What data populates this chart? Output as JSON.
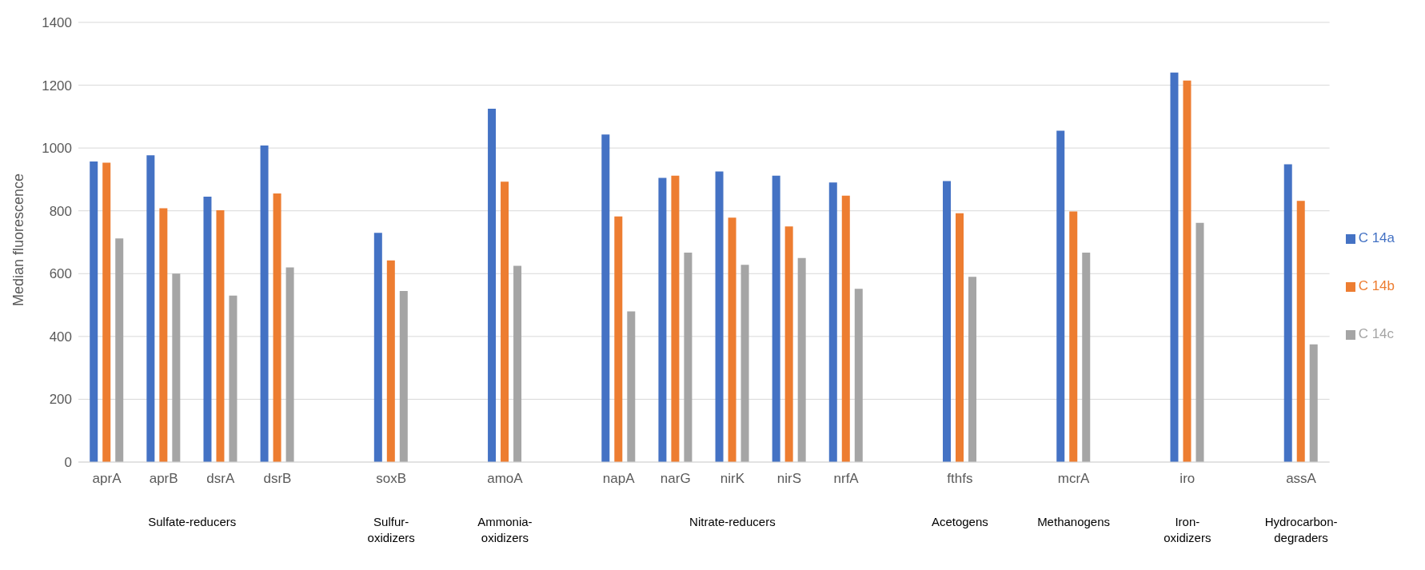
{
  "chart_data": {
    "type": "bar",
    "ylabel": "Median fluorescence",
    "categories": [
      "aprA",
      "aprB",
      "dsrA",
      "dsrB",
      null,
      "soxB",
      null,
      "amoA",
      null,
      "napA",
      "narG",
      "nirK",
      "nirS",
      "nrfA",
      null,
      "fthfs",
      null,
      "mcrA",
      null,
      "iro",
      null,
      "assA"
    ],
    "series": [
      {
        "name": "C 14a",
        "color": "#4472c4",
        "values": [
          957,
          977,
          845,
          1008,
          null,
          730,
          null,
          1125,
          null,
          1043,
          905,
          925,
          912,
          890,
          null,
          895,
          null,
          1055,
          null,
          1240,
          null,
          948
        ]
      },
      {
        "name": "C 14b",
        "color": "#ed7d31",
        "values": [
          953,
          808,
          802,
          855,
          null,
          642,
          null,
          893,
          null,
          782,
          912,
          778,
          750,
          848,
          null,
          792,
          null,
          798,
          null,
          1215,
          null,
          832
        ]
      },
      {
        "name": "C 14c",
        "color": "#a5a5a5",
        "values": [
          712,
          600,
          530,
          620,
          null,
          545,
          null,
          625,
          null,
          480,
          667,
          628,
          650,
          552,
          null,
          590,
          null,
          667,
          null,
          762,
          null,
          375
        ]
      }
    ],
    "annotations": [
      "Sulfate-reducers",
      "Sulfur-oxidizers",
      "Ammonia-oxidizers",
      "Nitrate-reducers",
      "Acetogens",
      "Methanogens",
      "Iron-oxidizers",
      "Hydrocarbon-degraders"
    ],
    "ylim": [
      0,
      1400
    ],
    "yticks": [
      0,
      200,
      400,
      600,
      800,
      1000,
      1200,
      1400
    ],
    "grid": "y",
    "legend": "right"
  }
}
